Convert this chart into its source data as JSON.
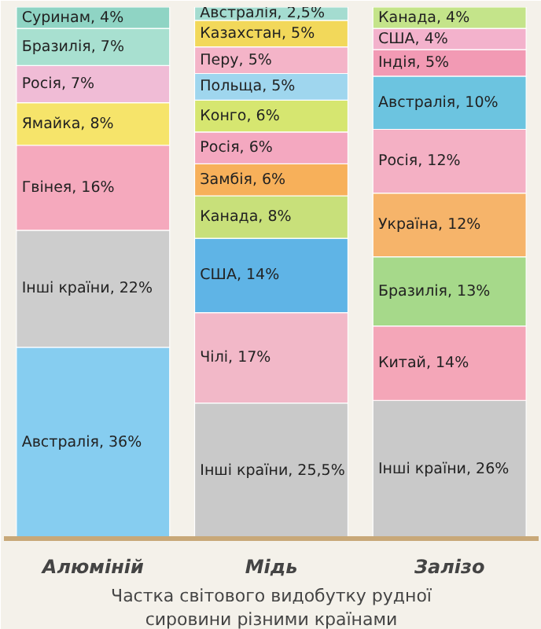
{
  "chart_data": {
    "type": "bar",
    "stacked": true,
    "categories": [
      "Алюміній",
      "Мідь",
      "Залізо"
    ],
    "ylim": [
      0,
      100
    ],
    "tick_labels": "x",
    "grid": false,
    "series": [
      {
        "values": [
          36,
          25.5,
          26
        ],
        "colors": [
          "#86cdf0",
          "#c9c9c9",
          "#c9c9c9"
        ],
        "value_labels": [
          "Австралія, 36%",
          "Інші країни, 25,5%",
          "Інші країни, 26%"
        ]
      },
      {
        "values": [
          22,
          17,
          14
        ],
        "colors": [
          "#cdcdcd",
          "#f2b8c8",
          "#f4a6b8"
        ],
        "value_labels": [
          "Інші країни, 22%",
          "Чілі, 17%",
          "Китай, 14%"
        ]
      },
      {
        "values": [
          16,
          14,
          13
        ],
        "colors": [
          "#f5a9bd",
          "#5fb4e6",
          "#a6d98a"
        ],
        "value_labels": [
          "Гвінея, 16%",
          "США, 14%",
          "Бразилія, 13%"
        ]
      },
      {
        "values": [
          8,
          8,
          12
        ],
        "colors": [
          "#f6e46a",
          "#c8e07a",
          "#f6b46a"
        ],
        "value_labels": [
          "Ямайка, 8%",
          "Канада, 8%",
          "Україна, 12%"
        ]
      },
      {
        "values": [
          7,
          6,
          12
        ],
        "colors": [
          "#f0bcd6",
          "#f7b05a",
          "#f4b0c4"
        ],
        "value_labels": [
          "Росія, 7%",
          "Замбія, 6%",
          "Росія, 12%"
        ]
      },
      {
        "values": [
          7,
          6,
          10
        ],
        "colors": [
          "#a8e0d0",
          "#f4a8c0",
          "#6cc4e0"
        ],
        "value_labels": [
          "Бразилія, 7%",
          "Росія, 6%",
          "Австралія, 10%"
        ]
      },
      {
        "values": [
          4,
          6,
          5
        ],
        "colors": [
          "#8fd4c4",
          "#d6e670",
          "#f29ab4"
        ],
        "value_labels": [
          "Суринам, 4%",
          "Конго, 6%",
          "Індія, 5%"
        ]
      },
      {
        "values": [
          null,
          5,
          4
        ],
        "colors": [
          "#ffffff",
          "#9fd6ee",
          "#f3b2cc"
        ],
        "value_labels": [
          null,
          "Польща, 5%",
          "США, 4%"
        ]
      },
      {
        "values": [
          null,
          5,
          4
        ],
        "colors": [
          "#ffffff",
          "#f4b4c8",
          "#c4e48a"
        ],
        "value_labels": [
          null,
          "Перу, 5%",
          "Канада, 4%"
        ]
      },
      {
        "values": [
          null,
          5,
          null
        ],
        "colors": [
          "#ffffff",
          "#f2d85a",
          "#ffffff"
        ],
        "value_labels": [
          null,
          "Казахстан, 5%",
          null
        ]
      },
      {
        "values": [
          null,
          2.5,
          null
        ],
        "colors": [
          "#ffffff",
          "#a4dcd0",
          "#ffffff"
        ],
        "value_labels": [
          null,
          "Австралія, 2,5%",
          null
        ]
      }
    ],
    "annotations": [
      "Частка світового видобутку рудної сировини різними країнами"
    ]
  }
}
